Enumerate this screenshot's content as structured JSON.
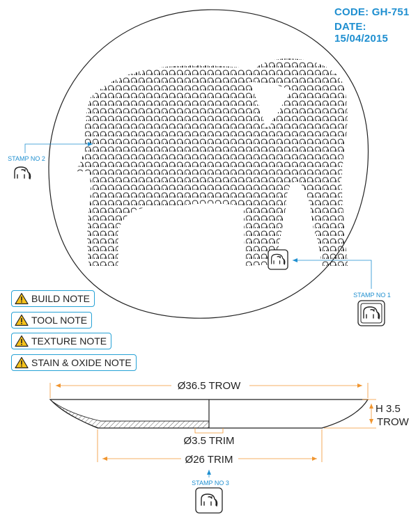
{
  "header": {
    "code": "CODE: GH-751",
    "date": "DATE: 15/04/2015"
  },
  "stamps": {
    "stamp1": "STAMP NO 1",
    "stamp2": "STAMP NO 2",
    "stamp3": "STAMP NO 3"
  },
  "notes": [
    {
      "label": "BUILD NOTE"
    },
    {
      "label": "TOOL NOTE"
    },
    {
      "label": "TEXTURE NOTE"
    },
    {
      "label": "STAIN & OXIDE NOTE"
    }
  ],
  "dimensions": {
    "overall_diameter": "Ø36.5 TROW",
    "height_value": "H 3.5",
    "height_unit": "TROW",
    "center_trim": "Ø3.5 TRIM",
    "foot_trim": "Ø26 TRIM"
  },
  "colors": {
    "accent_blue": "#1f8fd0",
    "dimension_orange": "#f0952f",
    "outline": "#222222"
  },
  "icons": {
    "stamp": "elephant-icon",
    "note": "warning-icon"
  }
}
